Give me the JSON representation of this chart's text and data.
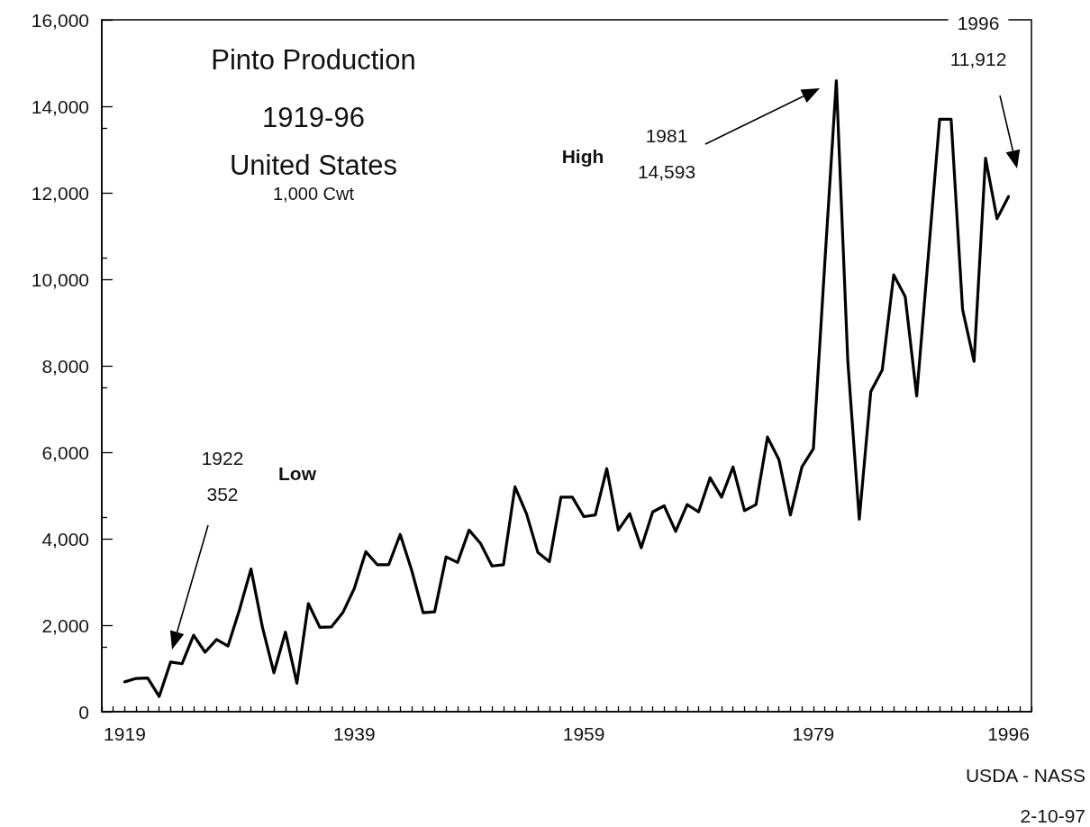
{
  "chart_data": {
    "type": "line",
    "title": "Pinto Production",
    "subtitle": "1919-96\nUnited States",
    "ylabel": "1,000 Cwt",
    "x": [
      1919,
      1920,
      1921,
      1922,
      1923,
      1924,
      1925,
      1926,
      1927,
      1928,
      1929,
      1930,
      1931,
      1932,
      1933,
      1934,
      1935,
      1936,
      1937,
      1938,
      1939,
      1940,
      1941,
      1942,
      1943,
      1944,
      1945,
      1946,
      1947,
      1948,
      1949,
      1950,
      1951,
      1952,
      1953,
      1954,
      1955,
      1956,
      1957,
      1958,
      1959,
      1960,
      1961,
      1962,
      1963,
      1964,
      1965,
      1966,
      1967,
      1968,
      1969,
      1970,
      1971,
      1972,
      1973,
      1974,
      1975,
      1976,
      1977,
      1978,
      1979,
      1980,
      1981,
      1982,
      1983,
      1984,
      1985,
      1986,
      1987,
      1988,
      1989,
      1990,
      1991,
      1992,
      1993,
      1994,
      1995,
      1996
    ],
    "series": [
      {
        "color": "#000000",
        "values": [
          690,
          770,
          780,
          352,
          1150,
          1110,
          1770,
          1375,
          1670,
          1520,
          2360,
          3300,
          1950,
          900,
          1840,
          660,
          2500,
          1950,
          1960,
          2290,
          2850,
          3700,
          3400,
          3400,
          4100,
          3270,
          2290,
          2310,
          3580,
          3450,
          4200,
          3890,
          3370,
          3400,
          5200,
          4580,
          3680,
          3470,
          4960,
          4960,
          4510,
          4550,
          5620,
          4200,
          4580,
          3790,
          4620,
          4760,
          4170,
          4790,
          4620,
          5410,
          4960,
          5660,
          4650,
          4790,
          6350,
          5830,
          4550,
          5660,
          6080,
          10400,
          14593,
          8100,
          4450,
          7400,
          7900,
          10100,
          9600,
          7300,
          10500,
          13700,
          13700,
          9300,
          8100,
          12800,
          11400,
          11912
        ]
      }
    ],
    "xlim": [
      1917,
      1998
    ],
    "xticks": [
      1919,
      1939,
      1959,
      1979,
      1996
    ],
    "ylim": [
      0,
      16000
    ],
    "yticks": [
      0,
      {
        "value": 2000,
        "label": "2,000"
      },
      {
        "value": 4000,
        "label": "4,000"
      },
      {
        "value": 6000,
        "label": "6,000"
      },
      {
        "value": 8000,
        "label": "8,000"
      },
      {
        "value": 10000,
        "label": "10,000"
      },
      {
        "value": 12000,
        "label": "12,000"
      },
      {
        "value": 14000,
        "label": "14,000"
      },
      {
        "value": 16000,
        "label": "16,000"
      }
    ],
    "grid": false,
    "marker": "none",
    "line_style": "solid",
    "annotations": [
      "Low",
      "High",
      "1922\n352",
      "1981\n14,593",
      "1996\n11,912",
      "USDA - NASS",
      "2-10-97"
    ]
  }
}
